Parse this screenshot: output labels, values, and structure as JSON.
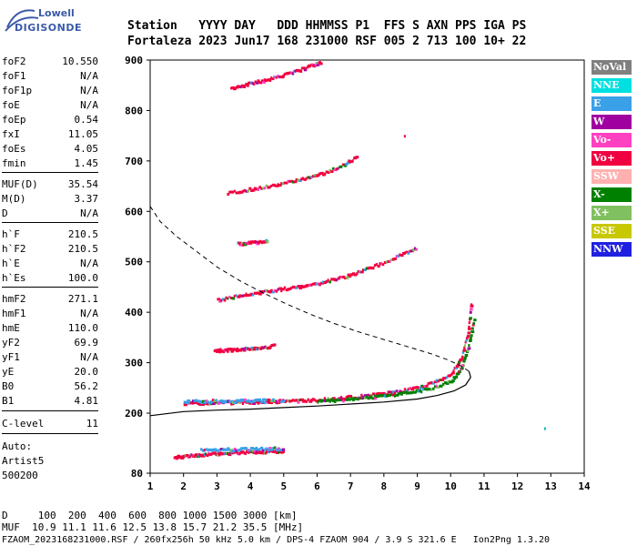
{
  "logo": {
    "line1": "Lowell",
    "line2": "DIGISONDE"
  },
  "header": {
    "labels": "Station   YYYY DAY   DDD HHMMSS P1  FFS S AXN PPS IGA PS",
    "values": "Fortaleza 2023 Jun17 168 231000 RSF 005 2 713 100 10+ 22"
  },
  "params": [
    {
      "key": "foF2",
      "value": "10.550"
    },
    {
      "key": "foF1",
      "value": "N/A"
    },
    {
      "key": "foF1p",
      "value": "N/A"
    },
    {
      "key": "foE",
      "value": "N/A"
    },
    {
      "key": "foEp",
      "value": "0.54"
    },
    {
      "key": "fxI",
      "value": "11.05"
    },
    {
      "key": "foEs",
      "value": "4.05"
    },
    {
      "key": "fmin",
      "value": "1.45"
    },
    {
      "key": "MUF(D)",
      "value": "35.54"
    },
    {
      "key": "M(D)",
      "value": "3.37"
    },
    {
      "key": "D",
      "value": "N/A"
    },
    {
      "key": "h`F",
      "value": "210.5"
    },
    {
      "key": "h`F2",
      "value": "210.5"
    },
    {
      "key": "h`E",
      "value": "N/A"
    },
    {
      "key": "h`Es",
      "value": "100.0"
    },
    {
      "key": "hmF2",
      "value": "271.1"
    },
    {
      "key": "hmF1",
      "value": "N/A"
    },
    {
      "key": "hmE",
      "value": "110.0"
    },
    {
      "key": "yF2",
      "value": "69.9"
    },
    {
      "key": "yF1",
      "value": "N/A"
    },
    {
      "key": "yE",
      "value": "20.0"
    },
    {
      "key": "B0",
      "value": "56.2"
    },
    {
      "key": "B1",
      "value": "4.81"
    },
    {
      "key": "C-level",
      "value": "11"
    }
  ],
  "auto": {
    "line1": "Auto:",
    "line2": "Artist5",
    "line3": "500200"
  },
  "legend": [
    {
      "label": "NoVal",
      "color": "#808080"
    },
    {
      "label": "NNE",
      "color": "#00e0e0"
    },
    {
      "label": "E",
      "color": "#3aa0e8"
    },
    {
      "label": "W",
      "color": "#a000a0"
    },
    {
      "label": "Vo-",
      "color": "#ff40c0"
    },
    {
      "label": "Vo+",
      "color": "#f00040"
    },
    {
      "label": "SSW",
      "color": "#ffb0b0"
    },
    {
      "label": "X-",
      "color": "#008000"
    },
    {
      "label": "X+",
      "color": "#80c060"
    },
    {
      "label": "SSE",
      "color": "#c8c800"
    },
    {
      "label": "NNW",
      "color": "#2020e0"
    }
  ],
  "footer": {
    "line1": "D     100  200  400  600  800 1000 1500 3000 [km]",
    "line2": "MUF  10.9 11.1 11.6 12.5 13.8 15.7 21.2 35.5 [MHz]",
    "line3": "FZAOM_2023168231000.RSF / 260fx256h 50 kHz 5.0 km / DPS-4 FZAOM 904 / 3.9 S 321.6 E   Ion2Png 1.3.20"
  },
  "chart_data": {
    "type": "scatter",
    "xlim": [
      1,
      14
    ],
    "ylim": [
      80,
      900
    ],
    "xticks": [
      "1",
      "2",
      "3",
      "4",
      "5",
      "6",
      "7",
      "8",
      "9",
      "10",
      "11",
      "12",
      "13",
      "14"
    ],
    "yticks": [
      "80",
      "200",
      "300",
      "400",
      "500",
      "600",
      "700",
      "800",
      "900"
    ],
    "yticks_values": [
      80,
      200,
      300,
      400,
      500,
      600,
      700,
      800,
      900
    ],
    "grid": false,
    "legend_position": "right",
    "traces": [
      {
        "name": "Es",
        "color": "#f00040",
        "x": [
          1.7,
          2,
          2.3,
          2.6,
          2.9,
          3.2,
          3.5,
          3.8,
          4.1,
          4.4,
          4.7,
          5
        ],
        "y": [
          113,
          115,
          117,
          119,
          120,
          121,
          122,
          123,
          124,
          124,
          125,
          126
        ]
      },
      {
        "name": "Es-E",
        "color": "#3aa0e8",
        "x": [
          2.5,
          3,
          3.5,
          4,
          4.5,
          5
        ],
        "y": [
          127,
          128,
          129,
          129,
          130,
          130
        ]
      },
      {
        "name": "F-O",
        "color": "#f00040",
        "x": [
          2,
          2.5,
          3,
          3.5,
          4,
          4.5,
          5,
          5.5,
          6,
          6.5,
          7,
          7.5,
          8,
          8.5,
          9,
          9.5,
          10,
          10.3,
          10.5,
          10.6
        ],
        "y": [
          220,
          221,
          222,
          222,
          223,
          224,
          225,
          226,
          228,
          230,
          233,
          236,
          240,
          245,
          252,
          262,
          280,
          310,
          360,
          425
        ]
      },
      {
        "name": "F-X",
        "color": "#008000",
        "x": [
          6,
          6.5,
          7,
          7.5,
          8,
          8.5,
          9,
          9.5,
          10,
          10.3,
          10.5,
          10.7
        ],
        "y": [
          225,
          227,
          229,
          232,
          236,
          240,
          245,
          252,
          265,
          290,
          330,
          395
        ]
      },
      {
        "name": "F-E",
        "color": "#3aa0e8",
        "x": [
          2,
          2.5,
          3,
          3.5,
          4,
          4.5,
          5
        ],
        "y": [
          224,
          225,
          225,
          225,
          226,
          226,
          227
        ]
      },
      {
        "name": "2E",
        "color": "#f00040",
        "x": [
          2.9,
          3.2,
          3.5,
          3.8,
          4.1,
          4.4,
          4.7
        ],
        "y": [
          325,
          326,
          327,
          328,
          330,
          332,
          335
        ]
      },
      {
        "name": "2F",
        "color": "#f00040",
        "x": [
          3,
          3.5,
          4,
          4.5,
          5,
          5.5,
          6,
          6.5,
          7,
          7.5,
          8,
          8.5,
          9
        ],
        "y": [
          425,
          432,
          438,
          443,
          448,
          452,
          458,
          466,
          476,
          488,
          500,
          515,
          530
        ]
      },
      {
        "name": "3Es",
        "color": "#f00040",
        "x": [
          3.6,
          3.9,
          4.2,
          4.5
        ],
        "y": [
          537,
          538,
          540,
          543
        ]
      },
      {
        "name": "3F",
        "color": "#f00040",
        "x": [
          3.3,
          3.8,
          4.3,
          4.8,
          5.3,
          5.8,
          6.3,
          6.8,
          7.2
        ],
        "y": [
          637,
          643,
          648,
          654,
          662,
          670,
          680,
          695,
          710
        ]
      },
      {
        "name": "4F",
        "color": "#f00040",
        "x": [
          3.4,
          3.8,
          4.2,
          4.6,
          5,
          5.4,
          5.8,
          6.1
        ],
        "y": [
          845,
          852,
          858,
          864,
          872,
          880,
          890,
          898
        ]
      },
      {
        "name": "stray",
        "color": "#f00040",
        "x": [
          8.6,
          12.8
        ],
        "y": [
          748,
          168
        ]
      }
    ],
    "profile": {
      "x": [
        1,
        2,
        3,
        4,
        5,
        6,
        7,
        8,
        9,
        9.6,
        10.1,
        10.45,
        10.6,
        10.55,
        10.3,
        9.9,
        9.4,
        8.7,
        8,
        7.2,
        6.5,
        5.8,
        5.1,
        4.4,
        3.7,
        3,
        2.4,
        1.8,
        1.3,
        1
      ],
      "y": [
        195,
        203,
        206,
        208,
        211,
        214,
        218,
        222,
        228,
        235,
        244,
        256,
        271,
        283,
        294,
        306,
        318,
        332,
        346,
        362,
        378,
        396,
        416,
        438,
        462,
        490,
        520,
        550,
        580,
        610
      ]
    }
  }
}
